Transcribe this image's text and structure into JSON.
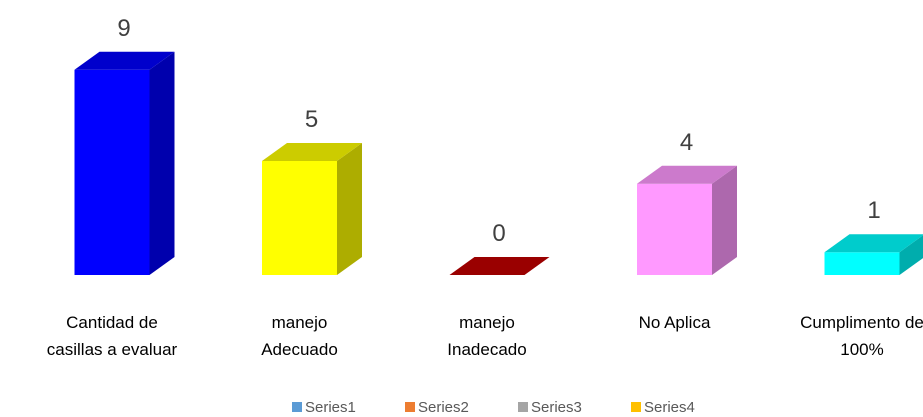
{
  "chart_data": {
    "type": "bar3d",
    "categories": [
      "Cantidad de\ncasillas a evaluar",
      "manejo\nAdecuado",
      "manejo\nInadecado",
      "No Aplica",
      "Cumplimento de\n100%"
    ],
    "values": [
      9,
      5,
      0,
      4,
      1
    ],
    "colors": [
      "#0000ff",
      "#ffff00",
      "#c00000",
      "#ff99ff",
      "#00ffff"
    ],
    "legend": [
      {
        "name": "Series1",
        "color": "#5b9bd5"
      },
      {
        "name": "Series2",
        "color": "#ed7d31"
      },
      {
        "name": "Series3",
        "color": "#a5a5a5"
      },
      {
        "name": "Series4",
        "color": "#ffc000"
      }
    ]
  }
}
